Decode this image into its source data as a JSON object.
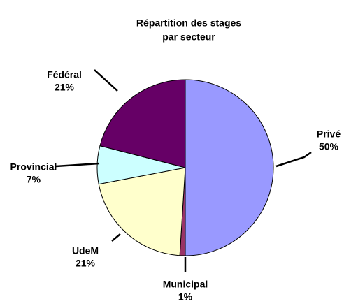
{
  "chart_data": {
    "type": "pie",
    "title": [
      "Répartition des stages",
      "par secteur"
    ],
    "categories": [
      "Privé",
      "Municipal",
      "UdeM",
      "Provincial",
      "Fédéral"
    ],
    "values": [
      50,
      1,
      21,
      7,
      21
    ],
    "value_labels": [
      "50%",
      "1%",
      "21%",
      "7%",
      "21%"
    ],
    "colors": [
      "#9999ff",
      "#993366",
      "#ffffcc",
      "#ccffff",
      "#660066"
    ]
  }
}
